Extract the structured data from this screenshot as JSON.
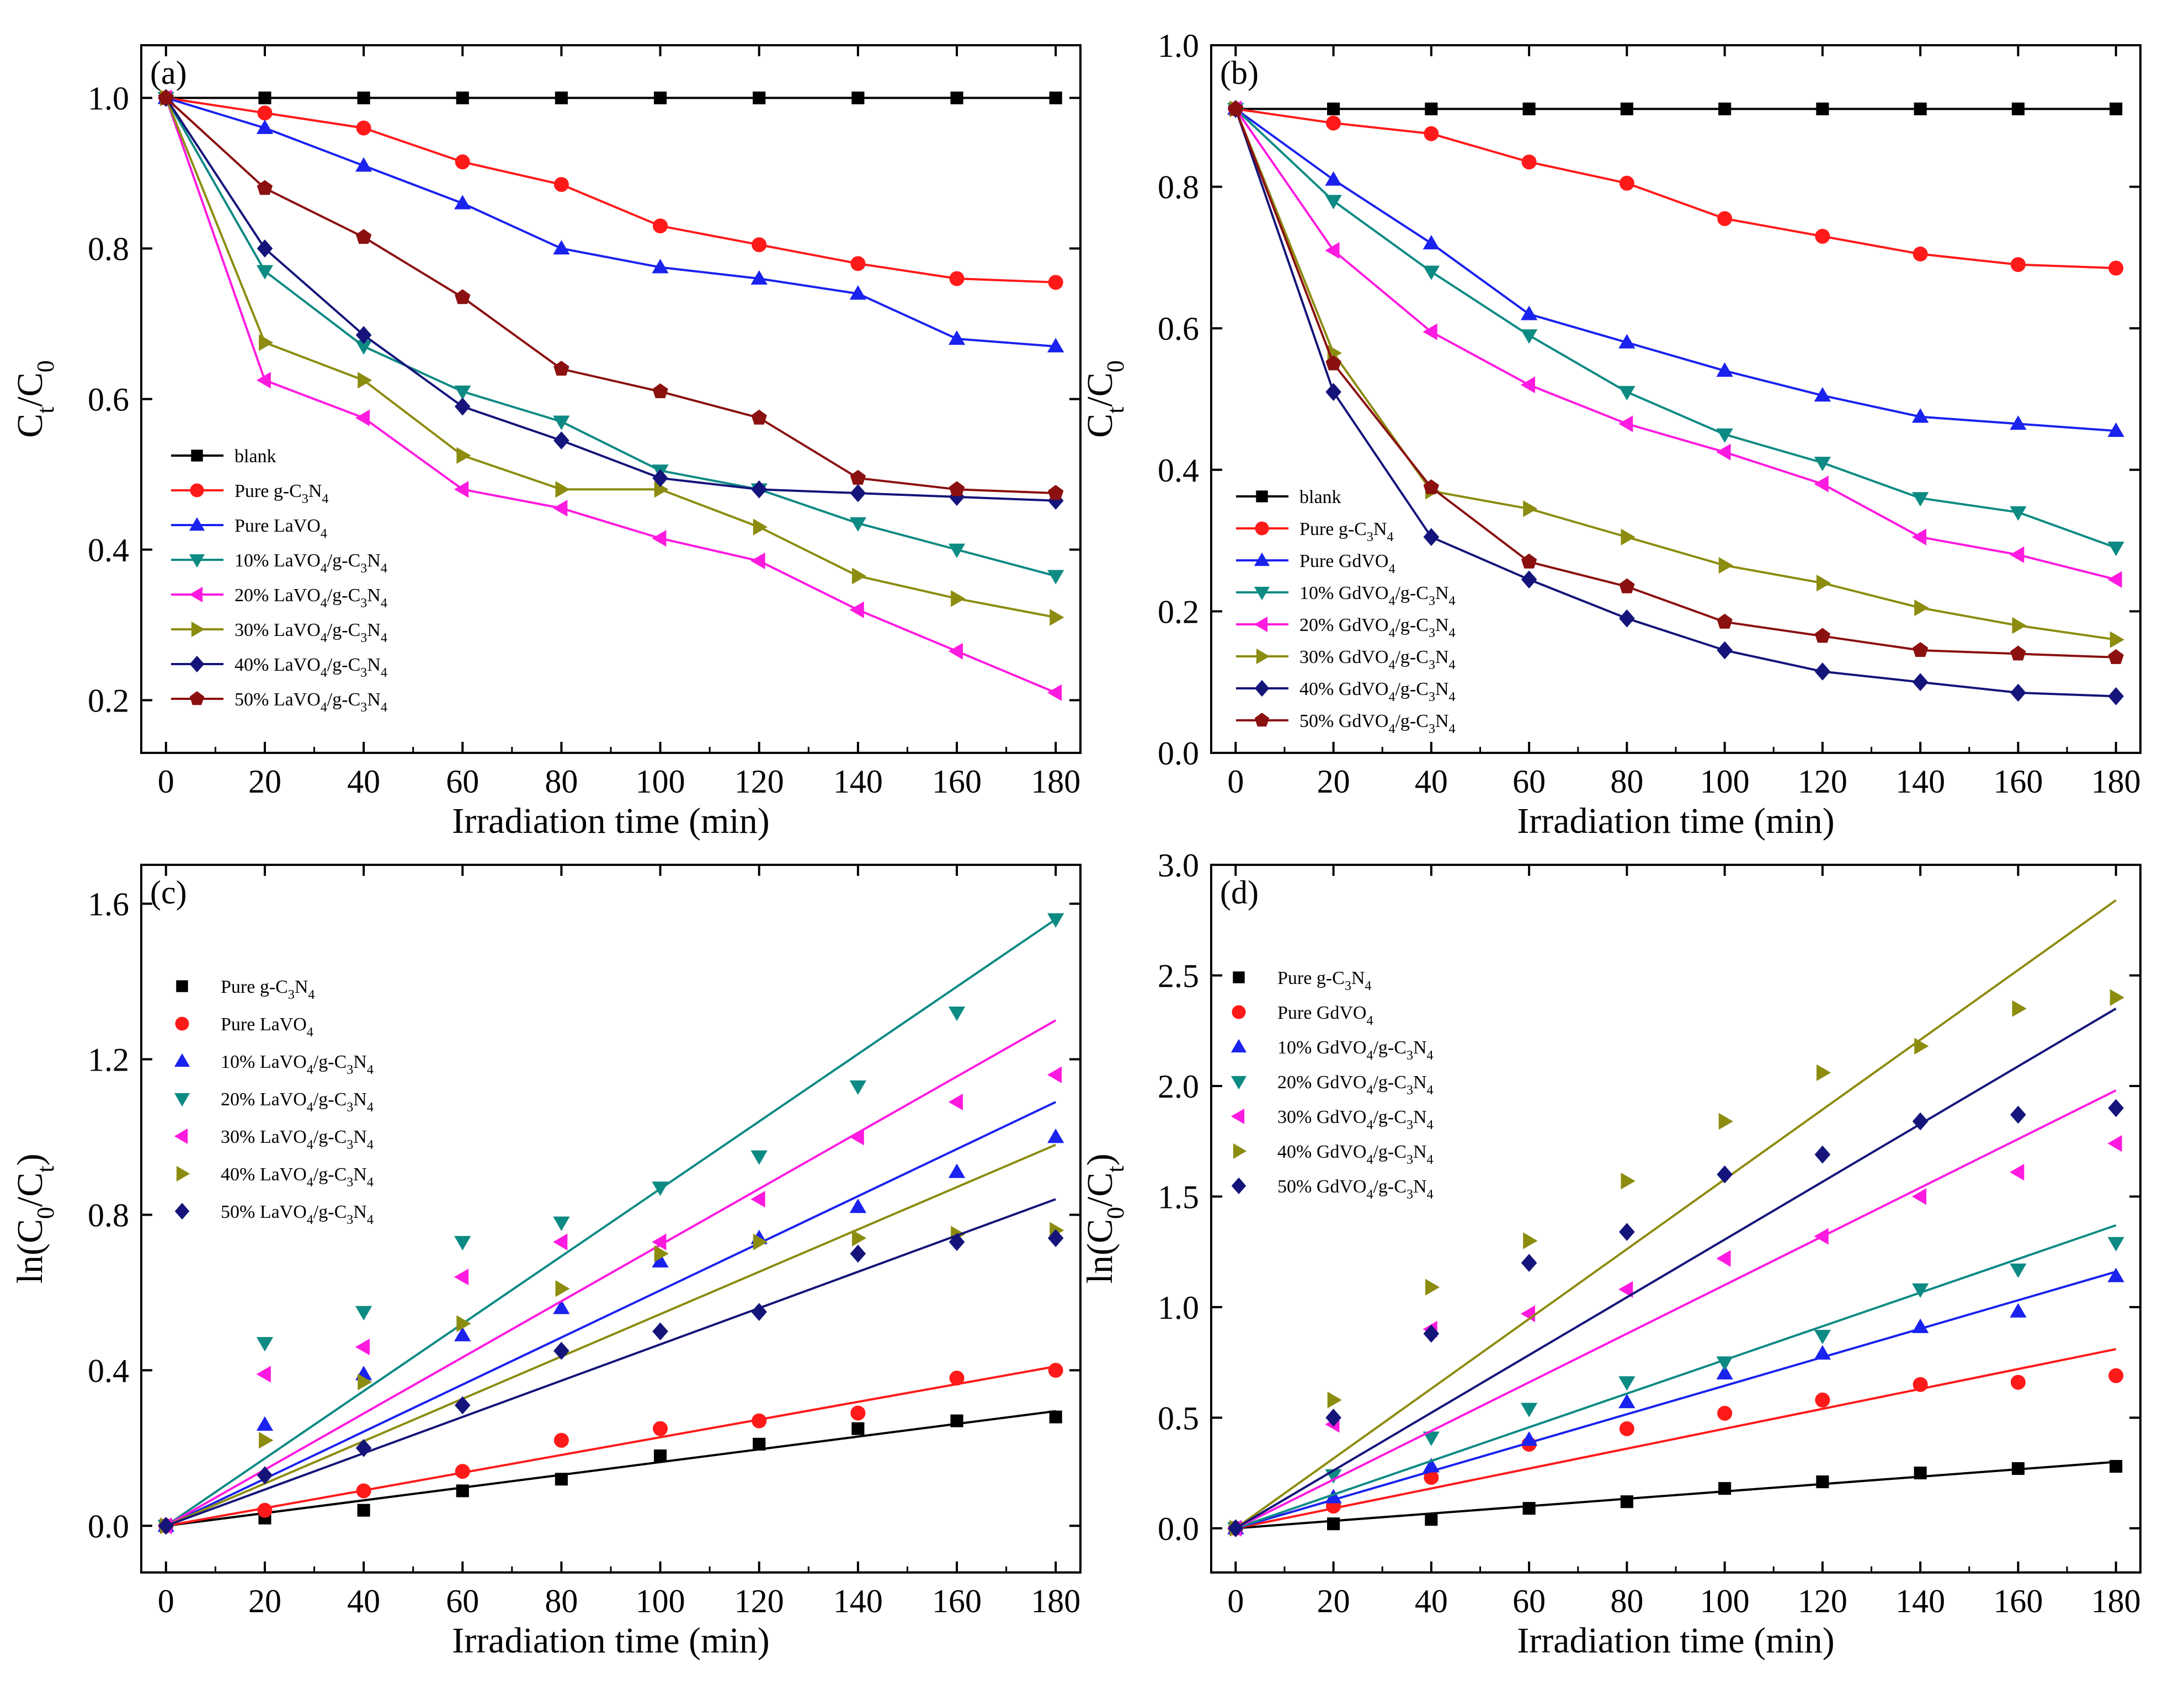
{
  "figure": {
    "colors": {
      "black": "#000000",
      "red": "#ff1a1a",
      "blue": "#1a22ee",
      "teal": "#0e8a84",
      "magenta": "#ff1ae0",
      "olive": "#8c8c10",
      "navy": "#14147a",
      "maroon": "#8b1010"
    }
  },
  "chart_data": [
    {
      "id": "a",
      "panel_label": "(a)",
      "type": "line",
      "xlabel": "Irradiation time (min)",
      "ylabel": {
        "base": "C",
        "sub1": "t",
        "mid": "/C",
        "sub2": "0"
      },
      "xlim": [
        -5,
        185
      ],
      "ylim": [
        0.13,
        1.07
      ],
      "xticks": [
        0,
        20,
        40,
        60,
        80,
        100,
        120,
        140,
        160,
        180
      ],
      "yticks": [
        0.2,
        0.4,
        0.6,
        0.8,
        1.0
      ],
      "ytick_labels": [
        "0.2",
        "0.4",
        "0.6",
        "0.8",
        "1.0"
      ],
      "x": [
        0,
        20,
        40,
        60,
        80,
        100,
        120,
        140,
        160,
        180
      ],
      "legend_position": "bottom-left",
      "series": [
        {
          "name": "blank",
          "legend": {
            "pre": "blank"
          },
          "marker": "square",
          "color": "#000000",
          "values": [
            1.0,
            1.0,
            1.0,
            1.0,
            1.0,
            1.0,
            1.0,
            1.0,
            1.0,
            1.0
          ]
        },
        {
          "name": "Pure g-C3N4",
          "legend": {
            "pre": "Pure g-C",
            "s1": "3",
            "mid": "N",
            "s2": "4"
          },
          "marker": "circle",
          "color": "#ff1a1a",
          "values": [
            1.0,
            0.98,
            0.96,
            0.915,
            0.885,
            0.83,
            0.805,
            0.78,
            0.76,
            0.755
          ]
        },
        {
          "name": "Pure LaVO4",
          "legend": {
            "pre": "Pure  LaVO",
            "s1": "4"
          },
          "marker": "tri-up",
          "color": "#1a22ee",
          "values": [
            1.0,
            0.96,
            0.91,
            0.86,
            0.8,
            0.775,
            0.76,
            0.74,
            0.68,
            0.67
          ]
        },
        {
          "name": "10% LaVO4/g-C3N4",
          "legend": {
            "pre": "10% LaVO",
            "s1": "4",
            "mid": "/g-C",
            "s2": "3",
            "mid2": "N",
            "s3": "4"
          },
          "marker": "tri-down",
          "color": "#0e8a84",
          "values": [
            1.0,
            0.77,
            0.67,
            0.61,
            0.57,
            0.505,
            0.48,
            0.435,
            0.4,
            0.365
          ]
        },
        {
          "name": "20% LaVO4/g-C3N4",
          "legend": {
            "pre": "20% LaVO",
            "s1": "4",
            "mid": "/g-C",
            "s2": "3",
            "mid2": "N",
            "s3": "4"
          },
          "marker": "tri-left",
          "color": "#ff1ae0",
          "values": [
            1.0,
            0.625,
            0.575,
            0.48,
            0.455,
            0.415,
            0.385,
            0.32,
            0.265,
            0.21
          ]
        },
        {
          "name": "30% LaVO4/g-C3N4",
          "legend": {
            "pre": "30% LaVO",
            "s1": "4",
            "mid": "/g-C",
            "s2": "3",
            "mid2": "N",
            "s3": "4"
          },
          "marker": "tri-right",
          "color": "#8c8c10",
          "values": [
            1.0,
            0.675,
            0.625,
            0.525,
            0.48,
            0.48,
            0.43,
            0.365,
            0.335,
            0.31
          ]
        },
        {
          "name": "40% LaVO4/g-C3N4",
          "legend": {
            "pre": "40% LaVO",
            "s1": "4",
            "mid": "/g-C",
            "s2": "3",
            "mid2": "N",
            "s3": "4"
          },
          "marker": "diamond",
          "color": "#14147a",
          "values": [
            1.0,
            0.8,
            0.685,
            0.59,
            0.545,
            0.495,
            0.48,
            0.475,
            0.47,
            0.465
          ]
        },
        {
          "name": "50% LaVO4/g-C3N4",
          "legend": {
            "pre": "50% LaVO",
            "s1": "4",
            "mid": "/g-C",
            "s2": "3",
            "mid2": "N",
            "s3": "4"
          },
          "marker": "pentagon",
          "color": "#8b1010",
          "values": [
            1.0,
            0.88,
            0.815,
            0.735,
            0.64,
            0.61,
            0.575,
            0.495,
            0.48,
            0.475
          ]
        }
      ]
    },
    {
      "id": "b",
      "panel_label": "(b)",
      "type": "line",
      "xlabel": "Irradiation time (min)",
      "ylabel": {
        "base": "C",
        "sub1": "t",
        "mid": "/C",
        "sub2": "0"
      },
      "xlim": [
        -5,
        185
      ],
      "ylim": [
        0.0,
        1.0
      ],
      "xticks": [
        0,
        20,
        40,
        60,
        80,
        100,
        120,
        140,
        160,
        180
      ],
      "yticks": [
        0.0,
        0.2,
        0.4,
        0.6,
        0.8,
        1.0
      ],
      "ytick_labels": [
        "0.0",
        "0.2",
        "0.4",
        "0.6",
        "0.8",
        "1.0"
      ],
      "x": [
        0,
        20,
        40,
        60,
        80,
        100,
        120,
        140,
        160,
        180
      ],
      "legend_position": "bottom-left",
      "series": [
        {
          "name": "blank",
          "legend": {
            "pre": "blank"
          },
          "marker": "square",
          "color": "#000000",
          "values": [
            0.91,
            0.91,
            0.91,
            0.91,
            0.91,
            0.91,
            0.91,
            0.91,
            0.91,
            0.91
          ]
        },
        {
          "name": "Pure g-C3N4",
          "legend": {
            "pre": "Pure g-C",
            "s1": "3",
            "mid": "N",
            "s2": "4"
          },
          "marker": "circle",
          "color": "#ff1a1a",
          "values": [
            0.91,
            0.89,
            0.875,
            0.835,
            0.805,
            0.755,
            0.73,
            0.705,
            0.69,
            0.685
          ]
        },
        {
          "name": "Pure GdVO4",
          "legend": {
            "pre": "Pure GdVO",
            "s1": "4"
          },
          "marker": "tri-up",
          "color": "#1a22ee",
          "values": [
            0.91,
            0.81,
            0.72,
            0.62,
            0.58,
            0.54,
            0.505,
            0.475,
            0.465,
            0.455
          ]
        },
        {
          "name": "10% GdVO4/g-C3N4",
          "legend": {
            "pre": "10% GdVO",
            "s1": "4",
            "mid": "/g-C",
            "s2": "3",
            "mid2": "N",
            "s3": "4"
          },
          "marker": "tri-down",
          "color": "#0e8a84",
          "values": [
            0.91,
            0.78,
            0.68,
            0.59,
            0.51,
            0.45,
            0.41,
            0.36,
            0.34,
            0.29
          ]
        },
        {
          "name": "20% GdVO4/g-C3N4",
          "legend": {
            "pre": "20% GdVO",
            "s1": "4",
            "mid": "/g-C",
            "s2": "3",
            "mid2": "N",
            "s3": "4"
          },
          "marker": "tri-left",
          "color": "#ff1ae0",
          "values": [
            0.91,
            0.71,
            0.595,
            0.52,
            0.465,
            0.425,
            0.38,
            0.305,
            0.28,
            0.245
          ]
        },
        {
          "name": "30% GdVO4/g-C3N4",
          "legend": {
            "pre": "30% GdVO",
            "s1": "4",
            "mid": "/g-C",
            "s2": "3",
            "mid2": "N",
            "s3": "4"
          },
          "marker": "tri-right",
          "color": "#8c8c10",
          "values": [
            0.91,
            0.565,
            0.37,
            0.345,
            0.305,
            0.265,
            0.24,
            0.205,
            0.18,
            0.16
          ]
        },
        {
          "name": "40% GdVO4/g-C3N4",
          "legend": {
            "pre": "40% GdVO",
            "s1": "4",
            "mid": "/g-C",
            "s2": "3",
            "mid2": "N",
            "s3": "4"
          },
          "marker": "diamond",
          "color": "#14147a",
          "values": [
            0.91,
            0.51,
            0.305,
            0.245,
            0.19,
            0.145,
            0.115,
            0.1,
            0.085,
            0.08
          ]
        },
        {
          "name": "50% GdVO4/g-C3N4",
          "legend": {
            "pre": "50% GdVO",
            "s1": "4",
            "mid": "/g-C",
            "s2": "3",
            "mid2": "N",
            "s3": "4"
          },
          "marker": "pentagon",
          "color": "#8b1010",
          "values": [
            0.91,
            0.55,
            0.375,
            0.27,
            0.235,
            0.185,
            0.165,
            0.145,
            0.14,
            0.135
          ]
        }
      ]
    },
    {
      "id": "c",
      "panel_label": "(c)",
      "type": "scatter",
      "fit": "linear through origin",
      "xlabel": "Irradiation time (min)",
      "ylabel": {
        "fn": "ln(C",
        "sub1": "0",
        "mid": "/C",
        "sub2": "t",
        "post": ")"
      },
      "xlim": [
        -5,
        185
      ],
      "ylim": [
        -0.12,
        1.7
      ],
      "xticks": [
        0,
        20,
        40,
        60,
        80,
        100,
        120,
        140,
        160,
        180
      ],
      "yticks": [
        0.0,
        0.4,
        0.8,
        1.2,
        1.6
      ],
      "ytick_labels": [
        "0.0",
        "0.4",
        "0.8",
        "1.2",
        "1.6"
      ],
      "x": [
        0,
        20,
        40,
        60,
        80,
        100,
        120,
        140,
        160,
        180
      ],
      "legend_position": "top-left",
      "series": [
        {
          "name": "Pure g-C3N4",
          "legend": {
            "pre": "Pure g-C",
            "s1": "3",
            "mid": "N",
            "s2": "4"
          },
          "marker": "square",
          "color": "#000000",
          "values": [
            0.0,
            0.02,
            0.04,
            0.09,
            0.12,
            0.18,
            0.21,
            0.25,
            0.27,
            0.28
          ],
          "fit_end": 0.295
        },
        {
          "name": "Pure LaVO4",
          "legend": {
            "pre": "Pure  LaVO",
            "s1": "4"
          },
          "marker": "circle",
          "color": "#ff1a1a",
          "values": [
            0.0,
            0.04,
            0.09,
            0.14,
            0.22,
            0.25,
            0.27,
            0.29,
            0.38,
            0.4
          ],
          "fit_end": 0.41
        },
        {
          "name": "10% LaVO4/g-C3N4",
          "legend": {
            "pre": "10% LaVO",
            "s1": "4",
            "mid": "/g-C",
            "s2": "3",
            "mid2": "N",
            "s3": "4"
          },
          "marker": "tri-up",
          "color": "#1a22ee",
          "values": [
            0.0,
            0.26,
            0.39,
            0.49,
            0.56,
            0.68,
            0.74,
            0.82,
            0.91,
            1.0
          ],
          "fit_end": 1.09
        },
        {
          "name": "20% LaVO4/g-C3N4",
          "legend": {
            "pre": "20% LaVO",
            "s1": "4",
            "mid": "/g-C",
            "s2": "3",
            "mid2": "N",
            "s3": "4"
          },
          "marker": "tri-down",
          "color": "#0e8a84",
          "values": [
            0.0,
            0.47,
            0.55,
            0.73,
            0.78,
            0.87,
            0.95,
            1.13,
            1.32,
            1.56
          ],
          "fit_end": 1.56
        },
        {
          "name": "30% LaVO4/g-C3N4",
          "legend": {
            "pre": "30% LaVO",
            "s1": "4",
            "mid": "/g-C",
            "s2": "3",
            "mid2": "N",
            "s3": "4"
          },
          "marker": "tri-left",
          "color": "#ff1ae0",
          "values": [
            0.0,
            0.39,
            0.46,
            0.64,
            0.73,
            0.73,
            0.84,
            1.0,
            1.09,
            1.16
          ],
          "fit_end": 1.3
        },
        {
          "name": "40% LaVO4/g-C3N4",
          "legend": {
            "pre": "40% LaVO",
            "s1": "4",
            "mid": "/g-C",
            "s2": "3",
            "mid2": "N",
            "s3": "4"
          },
          "marker": "tri-right",
          "color": "#8c8c10",
          "values": [
            0.0,
            0.22,
            0.37,
            0.52,
            0.61,
            0.7,
            0.73,
            0.74,
            0.75,
            0.76
          ],
          "fit_end": 0.98
        },
        {
          "name": "50% LaVO4/g-C3N4",
          "legend": {
            "pre": "50% LaVO",
            "s1": "4",
            "mid": "/g-C",
            "s2": "3",
            "mid2": "N",
            "s3": "4"
          },
          "marker": "diamond",
          "color": "#14147a",
          "values": [
            0.0,
            0.13,
            0.2,
            0.31,
            0.45,
            0.5,
            0.55,
            0.7,
            0.73,
            0.74
          ],
          "fit_end": 0.84
        }
      ]
    },
    {
      "id": "d",
      "panel_label": "(d)",
      "type": "scatter",
      "fit": "linear through origin",
      "xlabel": "Irradiation time (min)",
      "ylabel": {
        "fn": "ln(C",
        "sub1": "0",
        "mid": "/C",
        "sub2": "t",
        "post": ")"
      },
      "xlim": [
        -5,
        185
      ],
      "ylim": [
        -0.2,
        3.0
      ],
      "xticks": [
        0,
        20,
        40,
        60,
        80,
        100,
        120,
        140,
        160,
        180
      ],
      "yticks": [
        0.0,
        0.5,
        1.0,
        1.5,
        2.0,
        2.5,
        3.0
      ],
      "ytick_labels": [
        "0.0",
        "0.5",
        "1.0",
        "1.5",
        "2.0",
        "2.5",
        "3.0"
      ],
      "x": [
        0,
        20,
        40,
        60,
        80,
        100,
        120,
        140,
        160,
        180
      ],
      "legend_position": "top-left",
      "series": [
        {
          "name": "Pure g-C3N4",
          "legend": {
            "pre": "Pure g-C",
            "s1": "3",
            "mid": "N",
            "s2": "4"
          },
          "marker": "square",
          "color": "#000000",
          "values": [
            0.0,
            0.02,
            0.04,
            0.09,
            0.12,
            0.18,
            0.21,
            0.25,
            0.27,
            0.28
          ],
          "fit_end": 0.3
        },
        {
          "name": "Pure GdVO4",
          "legend": {
            "pre": "Pure GdVO",
            "s1": "4"
          },
          "marker": "circle",
          "color": "#ff1a1a",
          "values": [
            0.0,
            0.1,
            0.23,
            0.38,
            0.45,
            0.52,
            0.58,
            0.65,
            0.66,
            0.69
          ],
          "fit_end": 0.81
        },
        {
          "name": "10% GdVO4/g-C3N4",
          "legend": {
            "pre": "10% GdVO",
            "s1": "4",
            "mid": "/g-C",
            "s2": "3",
            "mid2": "N",
            "s3": "4"
          },
          "marker": "tri-up",
          "color": "#1a22ee",
          "values": [
            0.0,
            0.14,
            0.28,
            0.4,
            0.57,
            0.7,
            0.79,
            0.91,
            0.98,
            1.14
          ],
          "fit_end": 1.16
        },
        {
          "name": "20% GdVO4/g-C3N4",
          "legend": {
            "pre": "20% GdVO",
            "s1": "4",
            "mid": "/g-C",
            "s2": "3",
            "mid2": "N",
            "s3": "4"
          },
          "marker": "tri-down",
          "color": "#0e8a84",
          "values": [
            0.0,
            0.24,
            0.41,
            0.54,
            0.66,
            0.75,
            0.87,
            1.08,
            1.17,
            1.29
          ],
          "fit_end": 1.37
        },
        {
          "name": "30% GdVO4/g-C3N4",
          "legend": {
            "pre": "30% GdVO",
            "s1": "4",
            "mid": "/g-C",
            "s2": "3",
            "mid2": "N",
            "s3": "4"
          },
          "marker": "tri-left",
          "color": "#ff1ae0",
          "values": [
            0.0,
            0.47,
            0.9,
            0.97,
            1.08,
            1.22,
            1.32,
            1.5,
            1.61,
            1.74
          ],
          "fit_end": 1.98
        },
        {
          "name": "40% GdVO4/g-C3N4",
          "legend": {
            "pre": "40% GdVO",
            "s1": "4",
            "mid": "/g-C",
            "s2": "3",
            "mid2": "N",
            "s3": "4"
          },
          "marker": "tri-right",
          "color": "#8c8c10",
          "values": [
            0.0,
            0.58,
            1.09,
            1.3,
            1.57,
            1.84,
            2.06,
            2.18,
            2.35,
            2.4
          ],
          "fit_end": 2.84
        },
        {
          "name": "50% GdVO4/g-C3N4",
          "legend": {
            "pre": "50% GdVO",
            "s1": "4",
            "mid": "/g-C",
            "s2": "3",
            "mid2": "N",
            "s3": "4"
          },
          "marker": "diamond",
          "color": "#14147a",
          "values": [
            0.0,
            0.5,
            0.88,
            1.2,
            1.34,
            1.6,
            1.69,
            1.84,
            1.87,
            1.9
          ],
          "fit_end": 2.35
        }
      ]
    }
  ]
}
